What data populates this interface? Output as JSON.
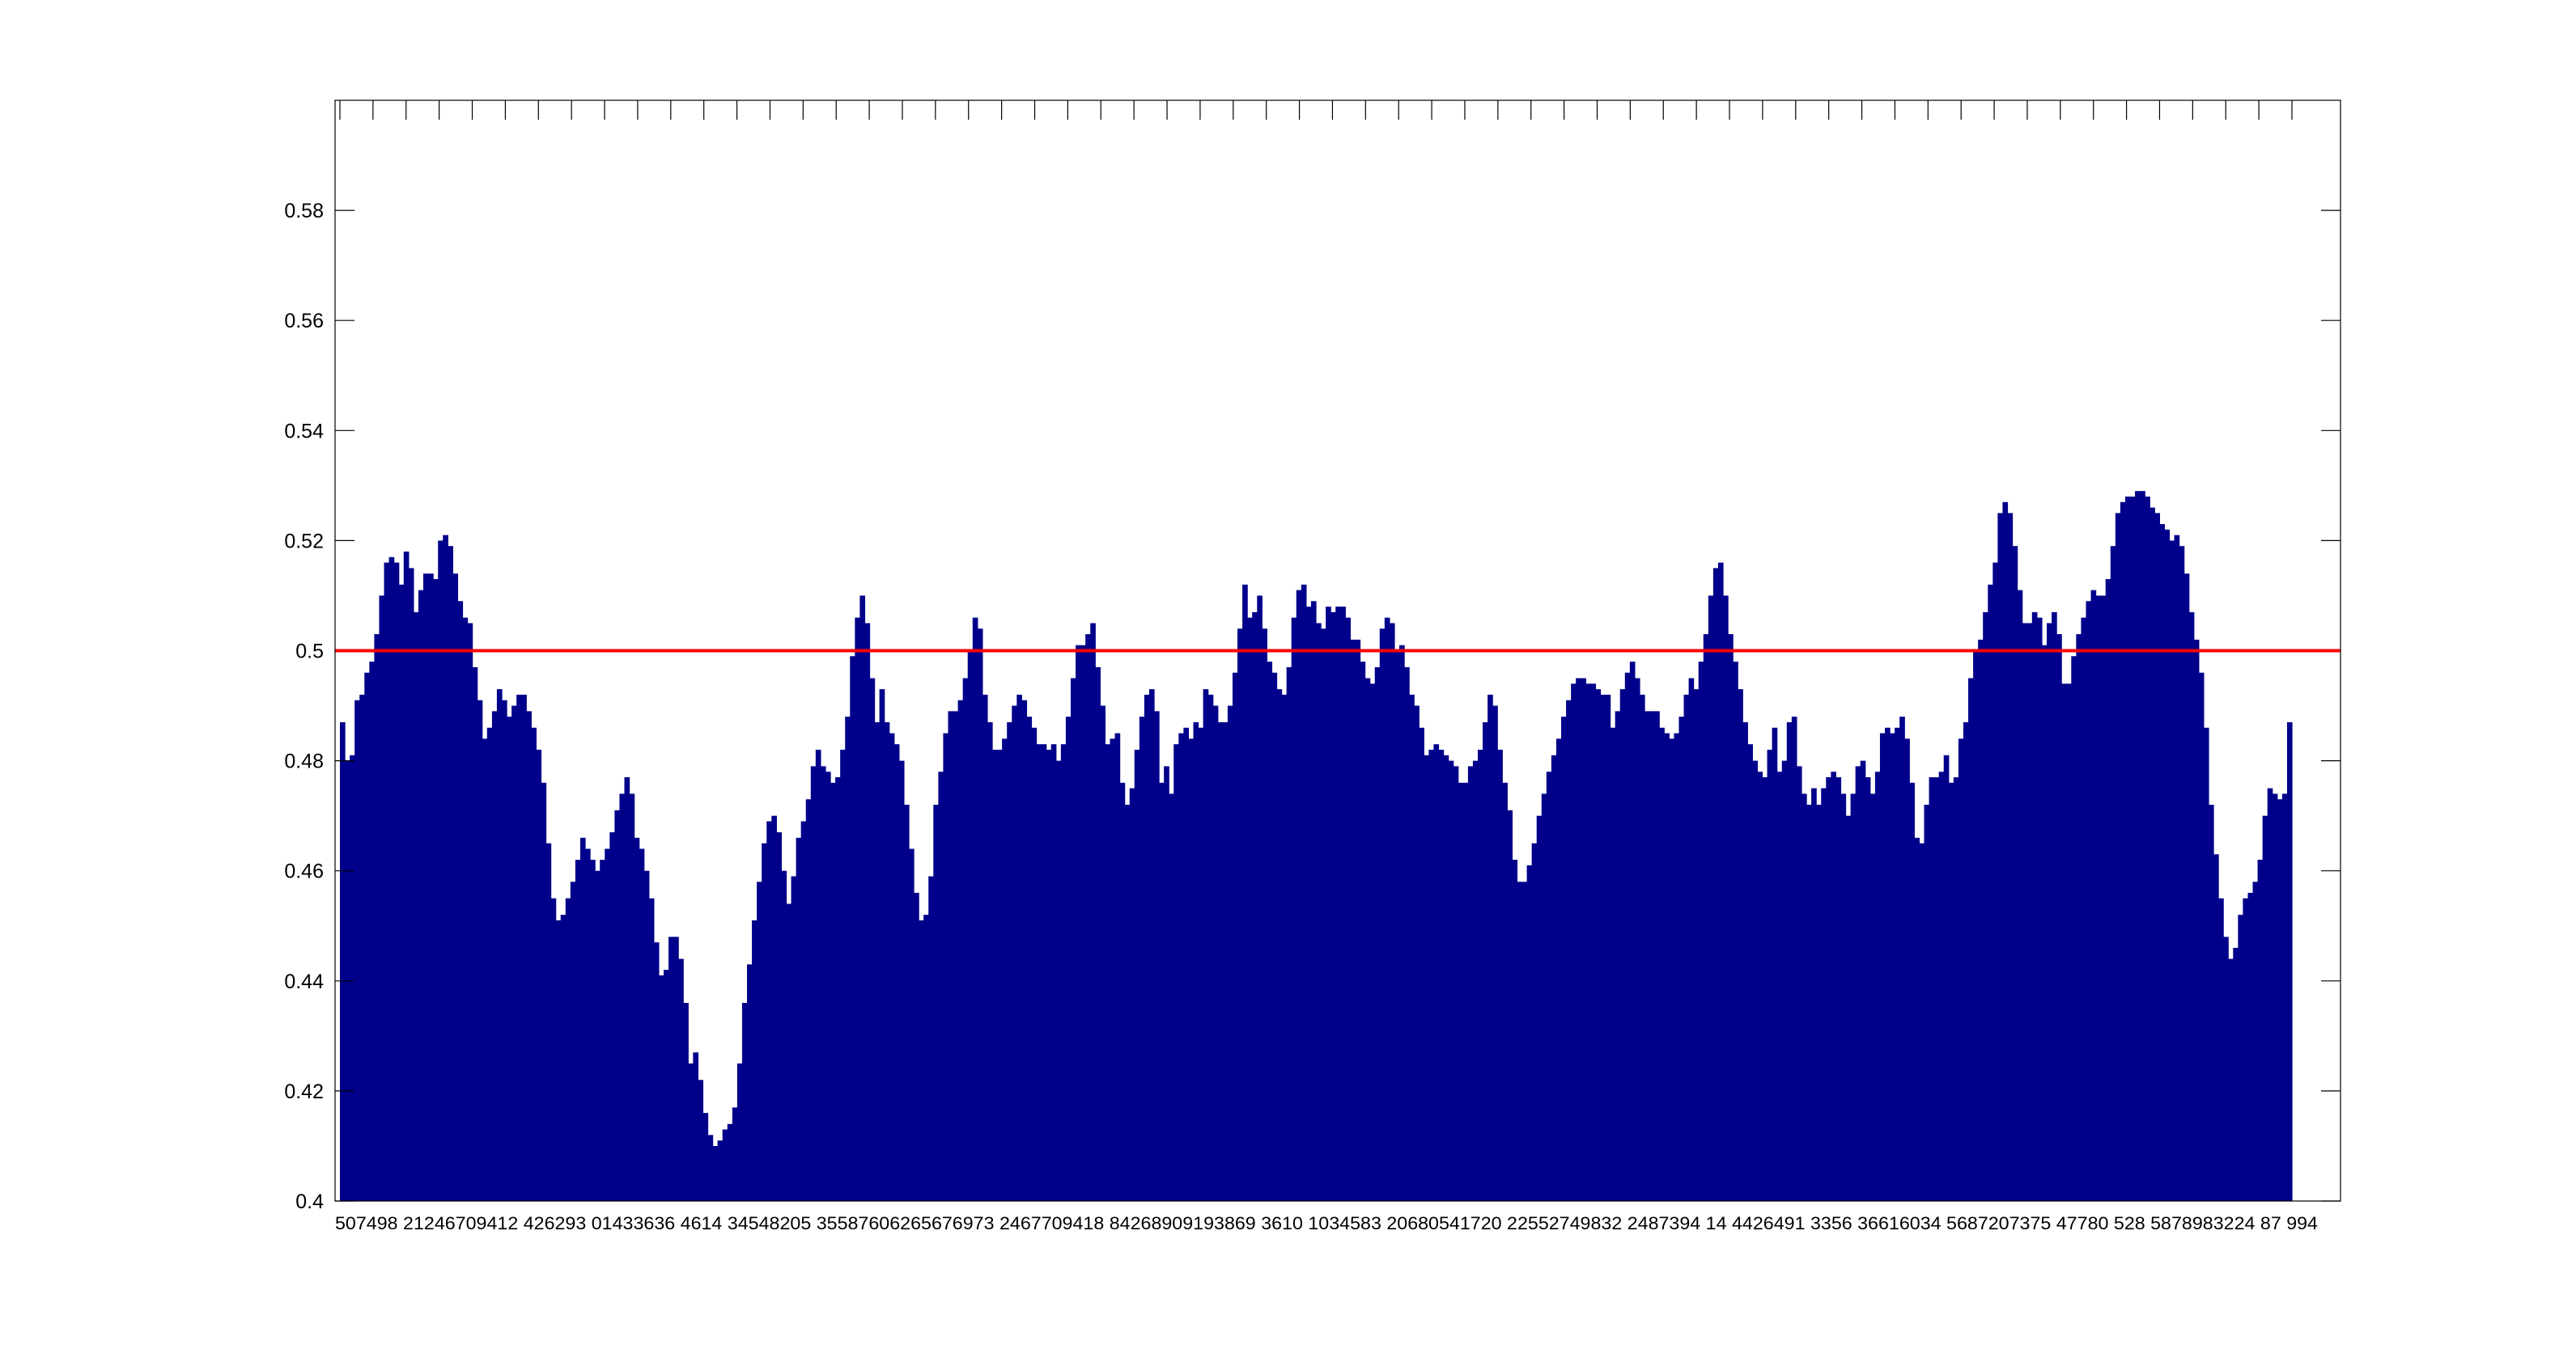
{
  "chart_data": {
    "type": "bar",
    "title": "",
    "xlabel": "",
    "ylabel": "",
    "ylim": [
      0.4,
      0.6
    ],
    "yticks": [
      {
        "value": 0.4,
        "label": "0.4"
      },
      {
        "value": 0.42,
        "label": "0.42"
      },
      {
        "value": 0.44,
        "label": "0.44"
      },
      {
        "value": 0.46,
        "label": "0.46"
      },
      {
        "value": 0.48,
        "label": "0.48"
      },
      {
        "value": 0.5,
        "label": "0.5"
      },
      {
        "value": 0.52,
        "label": "0.52"
      },
      {
        "value": 0.54,
        "label": "0.54"
      },
      {
        "value": 0.56,
        "label": "0.56"
      },
      {
        "value": 0.58,
        "label": "0.58"
      }
    ],
    "xtick_text": "507498 21246709412 426293 01433636 4614 34548205 35587606265676973 2467709418 84268909193869 3610 1034583 20680541720 22552749832 2487394 14 4426491 3356 36616034 5687207375 47780 528 5878983224 87 994",
    "reference_line": {
      "value": 0.5,
      "color": "#ff0000"
    },
    "bar_color": "#00008b",
    "grid": false,
    "values": [
      0.487,
      0.48,
      0.481,
      0.491,
      0.492,
      0.496,
      0.498,
      0.503,
      0.51,
      0.516,
      0.517,
      0.516,
      0.512,
      0.518,
      0.515,
      0.507,
      0.511,
      0.514,
      0.514,
      0.513,
      0.52,
      0.521,
      0.519,
      0.514,
      0.509,
      0.506,
      0.505,
      0.497,
      0.491,
      0.484,
      0.486,
      0.489,
      0.493,
      0.491,
      0.488,
      0.49,
      0.492,
      0.492,
      0.489,
      0.486,
      0.482,
      0.476,
      0.465,
      0.455,
      0.451,
      0.452,
      0.455,
      0.458,
      0.462,
      0.466,
      0.464,
      0.462,
      0.46,
      0.462,
      0.464,
      0.467,
      0.471,
      0.474,
      0.477,
      0.474,
      0.466,
      0.464,
      0.46,
      0.455,
      0.447,
      0.441,
      0.442,
      0.448,
      0.448,
      0.444,
      0.436,
      0.425,
      0.427,
      0.422,
      0.416,
      0.412,
      0.41,
      0.411,
      0.413,
      0.414,
      0.417,
      0.425,
      0.436,
      0.443,
      0.451,
      0.458,
      0.465,
      0.469,
      0.47,
      0.467,
      0.46,
      0.454,
      0.459,
      0.466,
      0.469,
      0.473,
      0.479,
      0.482,
      0.479,
      0.478,
      0.476,
      0.477,
      0.482,
      0.488,
      0.499,
      0.506,
      0.51,
      0.505,
      0.495,
      0.487,
      0.493,
      0.487,
      0.485,
      0.483,
      0.48,
      0.472,
      0.464,
      0.456,
      0.451,
      0.452,
      0.459,
      0.472,
      0.478,
      0.485,
      0.489,
      0.489,
      0.491,
      0.495,
      0.5,
      0.506,
      0.504,
      0.492,
      0.487,
      0.482,
      0.482,
      0.484,
      0.487,
      0.49,
      0.492,
      0.491,
      0.488,
      0.486,
      0.483,
      0.483,
      0.482,
      0.483,
      0.48,
      0.483,
      0.488,
      0.495,
      0.501,
      0.501,
      0.503,
      0.505,
      0.497,
      0.49,
      0.483,
      0.484,
      0.485,
      0.476,
      0.472,
      0.475,
      0.482,
      0.488,
      0.492,
      0.493,
      0.489,
      0.476,
      0.479,
      0.474,
      0.483,
      0.485,
      0.486,
      0.484,
      0.487,
      0.486,
      0.493,
      0.492,
      0.49,
      0.487,
      0.487,
      0.49,
      0.496,
      0.504,
      0.512,
      0.506,
      0.507,
      0.51,
      0.504,
      0.498,
      0.496,
      0.493,
      0.492,
      0.497,
      0.506,
      0.511,
      0.512,
      0.508,
      0.509,
      0.505,
      0.504,
      0.508,
      0.507,
      0.508,
      0.508,
      0.506,
      0.502,
      0.502,
      0.498,
      0.495,
      0.494,
      0.497,
      0.504,
      0.506,
      0.505,
      0.5,
      0.501,
      0.497,
      0.492,
      0.49,
      0.486,
      0.481,
      0.482,
      0.483,
      0.482,
      0.481,
      0.48,
      0.479,
      0.476,
      0.476,
      0.479,
      0.48,
      0.482,
      0.487,
      0.492,
      0.49,
      0.482,
      0.476,
      0.471,
      0.462,
      0.458,
      0.458,
      0.461,
      0.465,
      0.47,
      0.474,
      0.478,
      0.481,
      0.484,
      0.488,
      0.491,
      0.494,
      0.495,
      0.495,
      0.494,
      0.494,
      0.493,
      0.492,
      0.492,
      0.486,
      0.489,
      0.493,
      0.496,
      0.498,
      0.495,
      0.492,
      0.489,
      0.489,
      0.489,
      0.486,
      0.485,
      0.484,
      0.485,
      0.488,
      0.492,
      0.495,
      0.493,
      0.498,
      0.503,
      0.51,
      0.515,
      0.516,
      0.51,
      0.503,
      0.498,
      0.493,
      0.487,
      0.483,
      0.48,
      0.478,
      0.477,
      0.482,
      0.486,
      0.478,
      0.48,
      0.487,
      0.488,
      0.479,
      0.474,
      0.472,
      0.475,
      0.472,
      0.475,
      0.477,
      0.478,
      0.477,
      0.474,
      0.47,
      0.474,
      0.479,
      0.48,
      0.477,
      0.474,
      0.478,
      0.485,
      0.486,
      0.485,
      0.486,
      0.488,
      0.484,
      0.476,
      0.466,
      0.465,
      0.472,
      0.477,
      0.477,
      0.478,
      0.481,
      0.476,
      0.477,
      0.484,
      0.487,
      0.495,
      0.5,
      0.502,
      0.507,
      0.512,
      0.516,
      0.525,
      0.527,
      0.525,
      0.519,
      0.511,
      0.505,
      0.505,
      0.507,
      0.506,
      0.501,
      0.505,
      0.507,
      0.503,
      0.494,
      0.494,
      0.499,
      0.503,
      0.506,
      0.509,
      0.511,
      0.51,
      0.51,
      0.513,
      0.519,
      0.525,
      0.527,
      0.528,
      0.528,
      0.529,
      0.529,
      0.528,
      0.526,
      0.525,
      0.523,
      0.522,
      0.52,
      0.521,
      0.519,
      0.514,
      0.507,
      0.502,
      0.496,
      0.486,
      0.472,
      0.463,
      0.455,
      0.448,
      0.444,
      0.446,
      0.452,
      0.455,
      0.456,
      0.458,
      0.462,
      0.47,
      0.475,
      0.474,
      0.473,
      0.474,
      0.487
    ]
  }
}
